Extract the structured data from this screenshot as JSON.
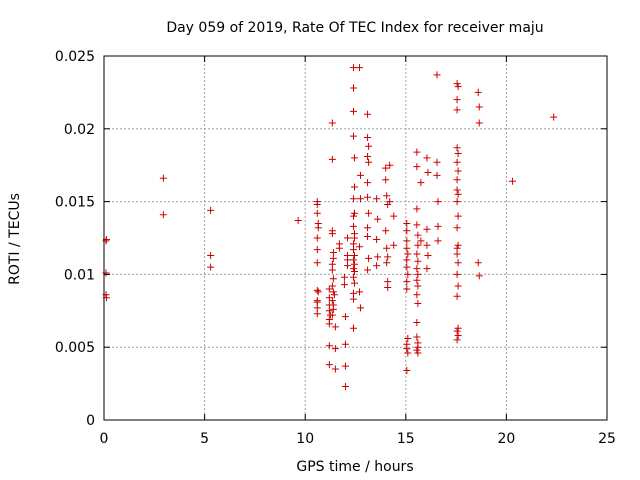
{
  "chart_data": {
    "type": "scatter",
    "title": "Day 059 of 2019, Rate Of TEC Index for receiver maju",
    "xlabel": "GPS time / hours",
    "ylabel": "ROTI / TECUs",
    "xlim": [
      0,
      25
    ],
    "ylim": [
      0,
      0.025
    ],
    "xticks": [
      0,
      5,
      10,
      15,
      20,
      25
    ],
    "xtick_labels": [
      "0",
      "5",
      "10",
      "15",
      "20",
      "25"
    ],
    "yticks": [
      0,
      0.005,
      0.01,
      0.015,
      0.02,
      0.025
    ],
    "ytick_labels": [
      "0",
      "0.005",
      "0.01",
      "0.015",
      "0.02",
      "0.025"
    ],
    "grid": true,
    "marker": "+",
    "color": "#cc0000",
    "series": [
      {
        "name": "ROTI",
        "points": [
          [
            0.1,
            0.0123
          ],
          [
            0.12,
            0.0124
          ],
          [
            0.1,
            0.0101
          ],
          [
            0.1,
            0.0086
          ],
          [
            0.12,
            0.0084
          ],
          [
            2.95,
            0.0166
          ],
          [
            2.95,
            0.0141
          ],
          [
            5.3,
            0.0144
          ],
          [
            5.3,
            0.0113
          ],
          [
            5.3,
            0.0105
          ],
          [
            9.65,
            0.0137
          ],
          [
            10.6,
            0.015
          ],
          [
            10.6,
            0.0148
          ],
          [
            10.6,
            0.0142
          ],
          [
            10.65,
            0.0135
          ],
          [
            10.65,
            0.0132
          ],
          [
            10.6,
            0.0125
          ],
          [
            10.6,
            0.0117
          ],
          [
            10.6,
            0.0108
          ],
          [
            10.6,
            0.0089
          ],
          [
            10.65,
            0.0088
          ],
          [
            10.6,
            0.0082
          ],
          [
            10.6,
            0.0081
          ],
          [
            10.6,
            0.0077
          ],
          [
            10.6,
            0.0073
          ],
          [
            11.2,
            0.009
          ],
          [
            11.2,
            0.0084
          ],
          [
            11.2,
            0.0079
          ],
          [
            11.2,
            0.0075
          ],
          [
            11.25,
            0.0072
          ],
          [
            11.2,
            0.0069
          ],
          [
            11.2,
            0.0066
          ],
          [
            11.2,
            0.0051
          ],
          [
            11.2,
            0.0038
          ],
          [
            11.35,
            0.0204
          ],
          [
            11.35,
            0.0179
          ],
          [
            11.35,
            0.013
          ],
          [
            11.35,
            0.0128
          ],
          [
            11.4,
            0.0115
          ],
          [
            11.4,
            0.0111
          ],
          [
            11.35,
            0.0107
          ],
          [
            11.35,
            0.0103
          ],
          [
            11.4,
            0.0097
          ],
          [
            11.35,
            0.0092
          ],
          [
            11.4,
            0.0088
          ],
          [
            11.45,
            0.0086
          ],
          [
            11.35,
            0.0082
          ],
          [
            11.4,
            0.0079
          ],
          [
            11.4,
            0.0076
          ],
          [
            11.35,
            0.0072
          ],
          [
            11.5,
            0.0064
          ],
          [
            11.5,
            0.0049
          ],
          [
            11.5,
            0.0035
          ],
          [
            11.7,
            0.0121
          ],
          [
            11.7,
            0.0118
          ],
          [
            11.95,
            0.0098
          ],
          [
            11.95,
            0.0093
          ],
          [
            12.0,
            0.0071
          ],
          [
            12.0,
            0.0052
          ],
          [
            12.0,
            0.0037
          ],
          [
            12.0,
            0.0023
          ],
          [
            12.1,
            0.0125
          ],
          [
            12.1,
            0.0113
          ],
          [
            12.1,
            0.011
          ],
          [
            12.1,
            0.0106
          ],
          [
            12.4,
            0.0242
          ],
          [
            12.4,
            0.0228
          ],
          [
            12.4,
            0.0212
          ],
          [
            12.4,
            0.0195
          ],
          [
            12.45,
            0.018
          ],
          [
            12.45,
            0.016
          ],
          [
            12.4,
            0.0152
          ],
          [
            12.45,
            0.0142
          ],
          [
            12.4,
            0.014
          ],
          [
            12.4,
            0.0133
          ],
          [
            12.45,
            0.0128
          ],
          [
            12.45,
            0.0125
          ],
          [
            12.4,
            0.0121
          ],
          [
            12.4,
            0.0117
          ],
          [
            12.45,
            0.0113
          ],
          [
            12.4,
            0.011
          ],
          [
            12.45,
            0.0107
          ],
          [
            12.4,
            0.0104
          ],
          [
            12.45,
            0.0102
          ],
          [
            12.4,
            0.0098
          ],
          [
            12.45,
            0.0094
          ],
          [
            12.4,
            0.0087
          ],
          [
            12.4,
            0.0083
          ],
          [
            12.4,
            0.0063
          ],
          [
            12.7,
            0.0242
          ],
          [
            12.75,
            0.0168
          ],
          [
            12.75,
            0.0152
          ],
          [
            12.7,
            0.0119
          ],
          [
            12.7,
            0.0088
          ],
          [
            12.75,
            0.0077
          ],
          [
            13.1,
            0.021
          ],
          [
            13.1,
            0.0194
          ],
          [
            13.15,
            0.0188
          ],
          [
            13.1,
            0.0181
          ],
          [
            13.15,
            0.0177
          ],
          [
            13.1,
            0.0163
          ],
          [
            13.1,
            0.0153
          ],
          [
            13.15,
            0.0142
          ],
          [
            13.1,
            0.0132
          ],
          [
            13.1,
            0.0126
          ],
          [
            13.15,
            0.0111
          ],
          [
            13.1,
            0.0103
          ],
          [
            13.55,
            0.0152
          ],
          [
            13.6,
            0.0138
          ],
          [
            13.55,
            0.0124
          ],
          [
            13.6,
            0.0112
          ],
          [
            13.55,
            0.0106
          ],
          [
            14.0,
            0.0173
          ],
          [
            14.0,
            0.0165
          ],
          [
            14.05,
            0.0154
          ],
          [
            14.1,
            0.0148
          ],
          [
            14.0,
            0.013
          ],
          [
            14.05,
            0.0118
          ],
          [
            14.1,
            0.0112
          ],
          [
            14.05,
            0.0108
          ],
          [
            14.1,
            0.0095
          ],
          [
            14.1,
            0.0091
          ],
          [
            14.2,
            0.0175
          ],
          [
            14.2,
            0.015
          ],
          [
            14.4,
            0.014
          ],
          [
            14.4,
            0.012
          ],
          [
            15.05,
            0.0135
          ],
          [
            15.05,
            0.013
          ],
          [
            15.05,
            0.0123
          ],
          [
            15.05,
            0.0118
          ],
          [
            15.1,
            0.0114
          ],
          [
            15.05,
            0.011
          ],
          [
            15.05,
            0.0105
          ],
          [
            15.1,
            0.01
          ],
          [
            15.05,
            0.0095
          ],
          [
            15.05,
            0.009
          ],
          [
            15.1,
            0.0056
          ],
          [
            15.05,
            0.0052
          ],
          [
            15.05,
            0.0049
          ],
          [
            15.1,
            0.0046
          ],
          [
            15.05,
            0.0034
          ],
          [
            15.55,
            0.0184
          ],
          [
            15.55,
            0.0174
          ],
          [
            15.55,
            0.0145
          ],
          [
            15.55,
            0.0134
          ],
          [
            15.6,
            0.0127
          ],
          [
            15.6,
            0.012
          ],
          [
            15.55,
            0.0114
          ],
          [
            15.6,
            0.0109
          ],
          [
            15.55,
            0.0104
          ],
          [
            15.6,
            0.01
          ],
          [
            15.55,
            0.0096
          ],
          [
            15.6,
            0.0092
          ],
          [
            15.55,
            0.0086
          ],
          [
            15.6,
            0.008
          ],
          [
            15.55,
            0.0067
          ],
          [
            15.55,
            0.0057
          ],
          [
            15.6,
            0.0053
          ],
          [
            15.6,
            0.005
          ],
          [
            15.55,
            0.0048
          ],
          [
            15.6,
            0.0046
          ],
          [
            15.75,
            0.0163
          ],
          [
            15.75,
            0.0123
          ],
          [
            16.05,
            0.018
          ],
          [
            16.1,
            0.017
          ],
          [
            16.05,
            0.0131
          ],
          [
            16.05,
            0.012
          ],
          [
            16.1,
            0.0113
          ],
          [
            16.05,
            0.0104
          ],
          [
            16.55,
            0.0237
          ],
          [
            16.55,
            0.0177
          ],
          [
            16.55,
            0.0168
          ],
          [
            16.6,
            0.015
          ],
          [
            16.6,
            0.0133
          ],
          [
            16.6,
            0.0123
          ],
          [
            17.55,
            0.0231
          ],
          [
            17.6,
            0.0229
          ],
          [
            17.55,
            0.022
          ],
          [
            17.55,
            0.0213
          ],
          [
            17.55,
            0.0187
          ],
          [
            17.6,
            0.0183
          ],
          [
            17.55,
            0.0177
          ],
          [
            17.6,
            0.0171
          ],
          [
            17.55,
            0.0165
          ],
          [
            17.55,
            0.0158
          ],
          [
            17.6,
            0.0155
          ],
          [
            17.55,
            0.015
          ],
          [
            17.6,
            0.014
          ],
          [
            17.55,
            0.0132
          ],
          [
            17.6,
            0.012
          ],
          [
            17.55,
            0.0118
          ],
          [
            17.55,
            0.0114
          ],
          [
            17.6,
            0.0108
          ],
          [
            17.55,
            0.01
          ],
          [
            17.6,
            0.0092
          ],
          [
            17.55,
            0.0085
          ],
          [
            17.6,
            0.0063
          ],
          [
            17.55,
            0.0061
          ],
          [
            17.6,
            0.0058
          ],
          [
            17.55,
            0.0055
          ],
          [
            18.6,
            0.0225
          ],
          [
            18.65,
            0.0215
          ],
          [
            18.65,
            0.0204
          ],
          [
            18.6,
            0.0108
          ],
          [
            18.65,
            0.0099
          ],
          [
            20.3,
            0.0164
          ],
          [
            22.35,
            0.0208
          ]
        ]
      }
    ]
  }
}
